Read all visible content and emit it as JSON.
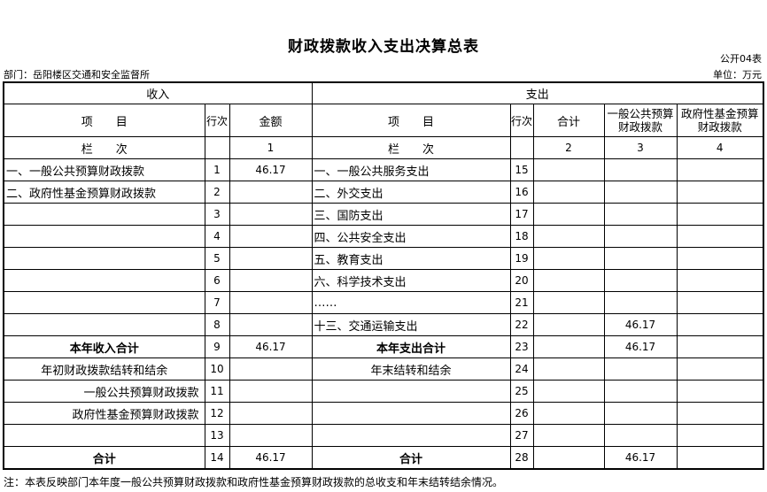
{
  "title": "财政拨款收入支出决算总表",
  "form_no": "公开04表",
  "department": "部门：岳阳楼区交通和安全监督所",
  "unit": "单位：万元",
  "header": {
    "income": "收入",
    "expense": "支出",
    "item": "项　　目",
    "row_no": "行次",
    "amount": "金额",
    "total": "合计",
    "general_budget": "一般公共预算财政拨款",
    "gov_fund": "政府性基金预算财政拨款",
    "column_label": "栏　　次",
    "col1": "1",
    "col2": "2",
    "col3": "3",
    "col4": "4"
  },
  "rows": [
    {
      "in_item": "一、一般公共预算财政拨款",
      "in_no": "1",
      "in_amt": "46.17",
      "out_item": "一、一般公共服务支出",
      "out_no": "15",
      "total": "",
      "general": "",
      "fund": ""
    },
    {
      "in_item": "二、政府性基金预算财政拨款",
      "in_no": "2",
      "in_amt": "",
      "out_item": "二、外交支出",
      "out_no": "16",
      "total": "",
      "general": "",
      "fund": ""
    },
    {
      "in_item": "",
      "in_no": "3",
      "in_amt": "",
      "out_item": "三、国防支出",
      "out_no": "17",
      "total": "",
      "general": "",
      "fund": ""
    },
    {
      "in_item": "",
      "in_no": "4",
      "in_amt": "",
      "out_item": "四、公共安全支出",
      "out_no": "18",
      "total": "",
      "general": "",
      "fund": ""
    },
    {
      "in_item": "",
      "in_no": "5",
      "in_amt": "",
      "out_item": "五、教育支出",
      "out_no": "19",
      "total": "",
      "general": "",
      "fund": ""
    },
    {
      "in_item": "",
      "in_no": "6",
      "in_amt": "",
      "out_item": "六、科学技术支出",
      "out_no": "20",
      "total": "",
      "general": "",
      "fund": ""
    },
    {
      "in_item": "",
      "in_no": "7",
      "in_amt": "",
      "out_item": "……",
      "out_no": "21",
      "total": "",
      "general": "",
      "fund": ""
    },
    {
      "in_item": "",
      "in_no": "8",
      "in_amt": "",
      "out_item": "十三、交通运输支出",
      "out_no": "22",
      "total": "",
      "general": "46.17",
      "fund": ""
    },
    {
      "in_item": "本年收入合计",
      "in_no": "9",
      "in_amt": "46.17",
      "out_item": "本年支出合计",
      "out_no": "23",
      "total": "",
      "general": "46.17",
      "fund": "",
      "style": "bold"
    },
    {
      "in_item": "年初财政拨款结转和结余",
      "in_no": "10",
      "in_amt": "",
      "out_item": "年末结转和结余",
      "out_no": "24",
      "total": "",
      "general": "",
      "fund": "",
      "style": "center"
    },
    {
      "in_item": "一般公共预算财政拨款",
      "in_no": "11",
      "in_amt": "",
      "out_item": "",
      "out_no": "25",
      "total": "",
      "general": "",
      "fund": "",
      "style": "right"
    },
    {
      "in_item": "政府性基金预算财政拨款",
      "in_no": "12",
      "in_amt": "",
      "out_item": "",
      "out_no": "26",
      "total": "",
      "general": "",
      "fund": "",
      "style": "right"
    },
    {
      "in_item": "",
      "in_no": "13",
      "in_amt": "",
      "out_item": "",
      "out_no": "27",
      "total": "",
      "general": "",
      "fund": ""
    },
    {
      "in_item": "合计",
      "in_no": "14",
      "in_amt": "46.17",
      "out_item": "合计",
      "out_no": "28",
      "total": "",
      "general": "46.17",
      "fund": "",
      "style": "bold"
    }
  ],
  "note": "注：本表反映部门本年度一般公共预算财政拨款和政府性基金预算财政拨款的总收支和年末结转结余情况。"
}
